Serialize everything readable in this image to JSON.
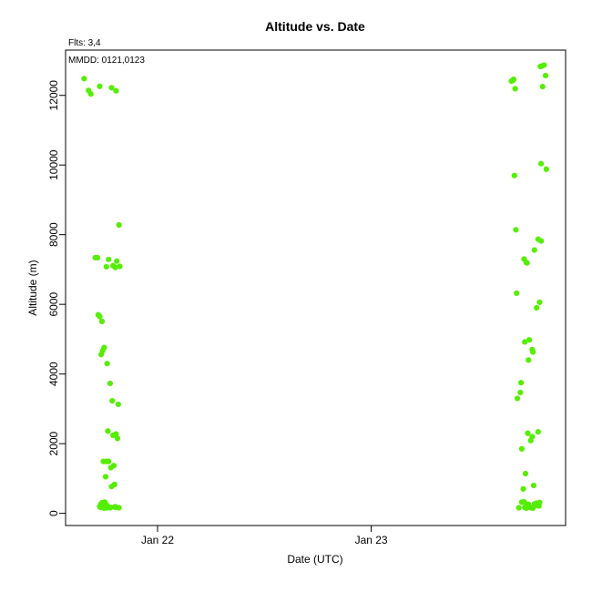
{
  "chart_data": {
    "type": "scatter",
    "title": "Altitude  vs. Date",
    "xlabel": "Date (UTC)",
    "ylabel": "Altitude (m)",
    "annotations": [
      "Flts: 3,4",
      "MMDD: 0121,0123"
    ],
    "x_ticks": [
      {
        "label": "Jan 22",
        "value": "2015-01-22T00:00"
      },
      {
        "label": "Jan 23",
        "value": "2015-01-23T00:00"
      }
    ],
    "y_ticks": [
      0,
      2000,
      4000,
      6000,
      8000,
      10000,
      12000
    ],
    "xlim": [
      "2015-01-21T13:40",
      "2015-01-23T21:50"
    ],
    "ylim": [
      -350,
      13300
    ],
    "grid": false,
    "point_color": "#55ee00",
    "series": [
      {
        "x": [
          "2015-01-21T15:45",
          "2015-01-21T16:15",
          "2015-01-21T16:30",
          "2015-01-21T17:15",
          "2015-01-21T17:00",
          "2015-01-21T17:30",
          "2015-01-21T17:45",
          "2015-01-21T17:20",
          "2015-01-21T17:40",
          "2015-01-21T17:50",
          "2015-01-21T18:00",
          "2015-01-21T18:20",
          "2015-01-21T18:40",
          "2015-01-21T18:55",
          "2015-01-21T19:35",
          "2015-01-21T19:30",
          "2015-01-21T19:20",
          "2015-01-21T18:25",
          "2015-01-21T19:00",
          "2015-01-21T17:55",
          "2015-01-21T18:30",
          "2015-01-21T18:45",
          "2015-01-21T18:15",
          "2015-01-21T19:05",
          "2015-01-21T18:10",
          "2015-01-21T19:10",
          "2015-01-21T18:50",
          "2015-01-21T19:45",
          "2015-01-21T18:15",
          "2015-01-21T18:30",
          "2015-01-21T19:00",
          "2015-01-21T19:15",
          "2015-01-21T19:25",
          "2015-01-21T19:40",
          "2015-01-21T19:20",
          "2015-01-21T18:50",
          "2015-01-21T17:30",
          "2015-01-21T18:05",
          "2015-01-21T18:10",
          "2015-01-21T18:20",
          "2015-01-21T19:15",
          "2015-01-21T19:40",
          "2015-01-21T18:40",
          "2015-01-21T18:20",
          "2015-01-21T17:45",
          "2015-01-21T17:50",
          "2015-01-21T17:30",
          "2015-01-21T18:00",
          "2015-01-21T17:35",
          "2015-01-21T17:55",
          "2015-01-21T18:25",
          "2015-01-21T18:45",
          "2015-01-21T17:40",
          "2015-01-21T19:15",
          "2015-01-23T15:45",
          "2015-01-23T15:55",
          "2015-01-23T16:00",
          "2015-01-23T16:10",
          "2015-01-23T19:00",
          "2015-01-23T19:10",
          "2015-01-23T19:25",
          "2015-01-23T19:35",
          "2015-01-23T19:15",
          "2015-01-23T16:05",
          "2015-01-23T19:05",
          "2015-01-23T19:40",
          "2015-01-23T16:15",
          "2015-01-23T19:05",
          "2015-01-23T18:20",
          "2015-01-23T18:45",
          "2015-01-23T17:30",
          "2015-01-23T17:10",
          "2015-01-23T17:25",
          "2015-01-23T16:20",
          "2015-01-23T18:55",
          "2015-01-23T18:35",
          "2015-01-23T17:45",
          "2015-01-23T18:10",
          "2015-01-23T18:05",
          "2015-01-23T17:40",
          "2015-01-23T17:15",
          "2015-01-23T16:50",
          "2015-01-23T16:25",
          "2015-01-23T16:45",
          "2015-01-23T18:45",
          "2015-01-23T17:35",
          "2015-01-23T18:05",
          "2015-01-23T17:55",
          "2015-01-23T16:55",
          "2015-01-23T17:20",
          "2015-01-23T18:15",
          "2015-01-23T17:05",
          "2015-01-23T16:35",
          "2015-01-23T16:55",
          "2015-01-23T17:25",
          "2015-01-23T18:10",
          "2015-01-23T17:45",
          "2015-01-23T18:00",
          "2015-01-23T17:50",
          "2015-01-23T17:15",
          "2015-01-23T17:25",
          "2015-01-23T17:40",
          "2015-01-23T18:35",
          "2015-01-23T18:55",
          "2015-01-23T17:10",
          "2015-01-23T18:40",
          "2015-01-23T18:50",
          "2015-01-23T18:30",
          "2015-01-23T18:25",
          "2015-01-23T18:20"
        ],
        "y": [
          12480,
          12140,
          12040,
          7340,
          7340,
          5650,
          5510,
          5700,
          4560,
          4670,
          4760,
          4300,
          3730,
          3230,
          3130,
          2150,
          2280,
          2360,
          2240,
          1490,
          1490,
          1310,
          1490,
          1370,
          1050,
          830,
          770,
          7090,
          7080,
          7290,
          7110,
          7060,
          7240,
          8280,
          12130,
          12220,
          12260,
          320,
          260,
          220,
          170,
          160,
          160,
          160,
          300,
          240,
          200,
          150,
          170,
          210,
          180,
          170,
          280,
          190,
          12410,
          12430,
          12460,
          12190,
          12830,
          12840,
          12870,
          12570,
          12250,
          9700,
          10040,
          9880,
          8140,
          7820,
          7560,
          7870,
          7190,
          7300,
          7200,
          6320,
          6060,
          5900,
          4980,
          4630,
          4700,
          4400,
          4920,
          3750,
          3300,
          3470,
          2340,
          2300,
          2200,
          2090,
          1850,
          1140,
          800,
          700,
          160,
          320,
          150,
          150,
          180,
          160,
          170,
          170,
          200,
          260,
          290,
          310,
          330,
          240,
          210,
          230,
          260,
          270
        ]
      }
    ]
  }
}
